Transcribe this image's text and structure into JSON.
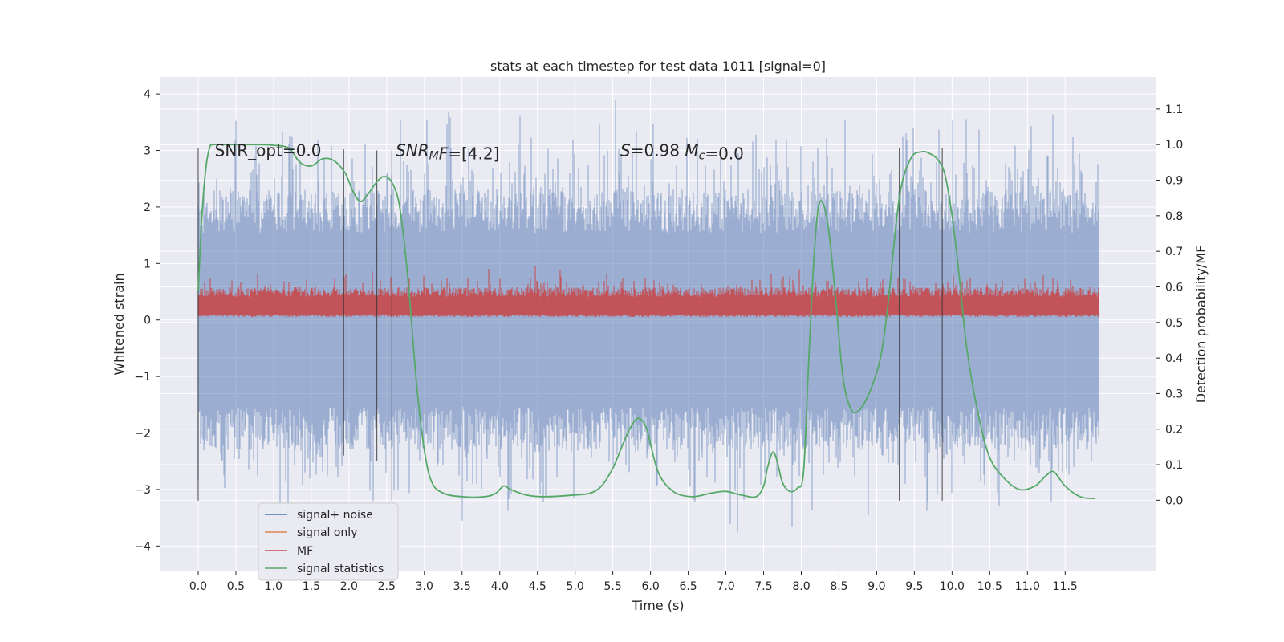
{
  "chart_data": {
    "type": "line",
    "title": "stats at each timestep for test data 1011 [signal=0]",
    "xlabel": "Time (s)",
    "ylabel": "Whitened strain",
    "y2label": "Detection probability/MF",
    "xlim": [
      -0.5,
      12.7
    ],
    "ylim": [
      -4.45,
      4.3
    ],
    "y2lim": [
      -0.2,
      1.19
    ],
    "xticks": [
      0.0,
      0.5,
      1.0,
      1.5,
      2.0,
      2.5,
      3.0,
      3.5,
      4.0,
      4.5,
      5.0,
      5.5,
      6.0,
      6.5,
      7.0,
      7.5,
      8.0,
      8.5,
      9.0,
      9.5,
      10.0,
      10.5,
      11.0,
      11.5
    ],
    "xtick_labels": [
      "0.0",
      "0.5",
      "1.0",
      "1.5",
      "2.0",
      "2.5",
      "3.0",
      "3.5",
      "4.0",
      "4.5",
      "5.0",
      "5.5",
      "6.0",
      "6.5",
      "7.0",
      "7.5",
      "8.0",
      "8.5",
      "9.0",
      "9.5",
      "10.0",
      "10.5",
      "11.0",
      "11.5"
    ],
    "yticks": [
      4,
      3,
      2,
      1,
      0,
      -1,
      -2,
      -3,
      -4
    ],
    "ytick_labels": [
      "4",
      "3",
      "2",
      "1",
      "0",
      "−1",
      "−2",
      "−3",
      "−4"
    ],
    "y2ticks": [
      1.1,
      1.0,
      0.9,
      0.8,
      0.7,
      0.6,
      0.5,
      0.4,
      0.3,
      0.2,
      0.1,
      0.0
    ],
    "y2tick_labels": [
      "1.1",
      "1.0",
      "0.9",
      "0.8",
      "0.7",
      "0.6",
      "0.5",
      "0.4",
      "0.3",
      "0.2",
      "0.1",
      "0.0"
    ],
    "grid": true,
    "legend_position": "bottom-left",
    "noise": {
      "name": "signal+ noise",
      "color": "#4c72b0",
      "t_range": [
        0.0,
        11.95
      ],
      "envelope_upper": 2.2,
      "envelope_lower": -2.2,
      "peak_max": 3.9,
      "peak_min": -4.1
    },
    "signal_only": {
      "name": "signal only",
      "color": "#dd8452"
    },
    "mf": {
      "name": "MF",
      "color": "#c44e52",
      "t_range": [
        0.0,
        11.95
      ],
      "band_upper": 0.55,
      "band_lower": 0.05
    },
    "signal_statistics": {
      "name": "signal statistics",
      "color": "#55a868",
      "x": [
        0.0,
        0.05,
        0.1,
        0.15,
        0.2,
        0.4,
        0.8,
        1.0,
        1.2,
        1.35,
        1.5,
        1.65,
        1.8,
        1.95,
        2.05,
        2.15,
        2.25,
        2.35,
        2.45,
        2.55,
        2.65,
        2.72,
        2.8,
        2.9,
        3.0,
        3.1,
        3.25,
        3.5,
        3.8,
        3.95,
        4.05,
        4.15,
        4.35,
        4.6,
        5.0,
        5.2,
        5.35,
        5.5,
        5.6,
        5.7,
        5.78,
        5.85,
        5.95,
        6.1,
        6.3,
        6.55,
        6.8,
        7.0,
        7.2,
        7.4,
        7.5,
        7.55,
        7.62,
        7.68,
        7.75,
        7.85,
        7.95,
        8.03,
        8.1,
        8.18,
        8.25,
        8.35,
        8.45,
        8.55,
        8.65,
        8.75,
        8.9,
        9.05,
        9.15,
        9.3,
        9.45,
        9.6,
        9.7,
        9.8,
        9.9,
        10.0,
        10.1,
        10.2,
        10.35,
        10.5,
        10.7,
        10.9,
        11.1,
        11.25,
        11.35,
        11.5,
        11.7,
        11.9
      ],
      "y": [
        0.59,
        0.8,
        0.93,
        0.99,
        1.0,
        1.0,
        1.0,
        0.998,
        0.99,
        0.95,
        0.94,
        0.96,
        0.955,
        0.92,
        0.87,
        0.84,
        0.86,
        0.89,
        0.91,
        0.9,
        0.85,
        0.75,
        0.58,
        0.32,
        0.14,
        0.05,
        0.02,
        0.01,
        0.01,
        0.02,
        0.04,
        0.03,
        0.015,
        0.01,
        0.015,
        0.02,
        0.04,
        0.09,
        0.14,
        0.19,
        0.22,
        0.23,
        0.2,
        0.08,
        0.025,
        0.01,
        0.02,
        0.025,
        0.015,
        0.01,
        0.04,
        0.09,
        0.135,
        0.11,
        0.05,
        0.025,
        0.035,
        0.08,
        0.4,
        0.72,
        0.84,
        0.78,
        0.58,
        0.35,
        0.26,
        0.25,
        0.3,
        0.4,
        0.55,
        0.85,
        0.96,
        0.98,
        0.975,
        0.96,
        0.92,
        0.8,
        0.62,
        0.42,
        0.24,
        0.12,
        0.06,
        0.03,
        0.04,
        0.07,
        0.08,
        0.04,
        0.01,
        0.005
      ]
    },
    "vlines": [
      {
        "x": 0.0,
        "ymin": -3.2,
        "ymax": 3.05
      },
      {
        "x": 1.93,
        "ymin": -2.4,
        "ymax": 3.02
      },
      {
        "x": 2.37,
        "ymin": -2.5,
        "ymax": 3.0
      },
      {
        "x": 2.57,
        "ymin": -3.2,
        "ymax": 3.0
      },
      {
        "x": 9.3,
        "ymin": -3.2,
        "ymax": 3.04
      },
      {
        "x": 9.87,
        "ymin": -3.2,
        "ymax": 3.04
      }
    ],
    "annotations": [
      {
        "x": 0.22,
        "y": 3.0,
        "parts": [
          {
            "t": "SNR_opt=0.0"
          }
        ]
      },
      {
        "x": 2.62,
        "y": 3.0,
        "parts": [
          {
            "t": "SNR",
            "i": true
          },
          {
            "t": "M",
            "i": true,
            "sub": true
          },
          {
            "t": "F",
            "i": true
          },
          {
            "t": "=[4.2]"
          }
        ]
      },
      {
        "x": 5.6,
        "y": 3.0,
        "parts": [
          {
            "t": "S",
            "i": true
          },
          {
            "t": "=0.98   "
          },
          {
            "t": "M",
            "i": true
          },
          {
            "t": "c",
            "i": true,
            "sub": true
          },
          {
            "t": "=0.0"
          }
        ]
      }
    ]
  }
}
